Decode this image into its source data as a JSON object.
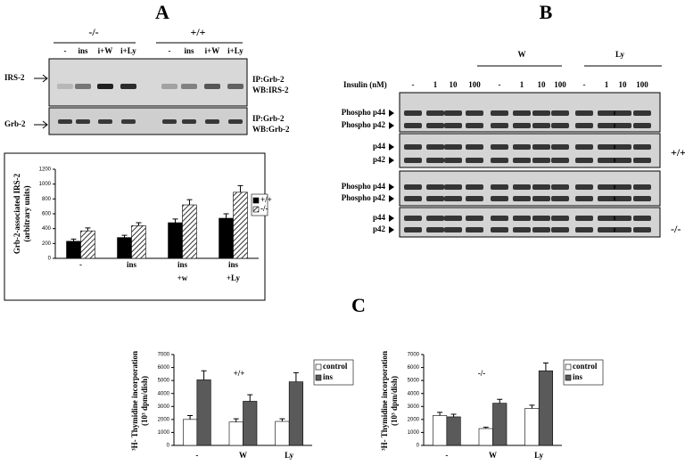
{
  "panel_a": {
    "label": "A",
    "groups": [
      "-/-",
      "+/+"
    ],
    "lanes": [
      "-",
      "ins",
      "i+W",
      "i+Ly",
      "-",
      "ins",
      "i+W",
      "i+Ly"
    ],
    "blot_labels": [
      "IRS-2",
      "Grb-2"
    ],
    "blot_notes": [
      [
        "IP:Grb-2",
        "WB:IRS-2"
      ],
      [
        "IP:Grb-2",
        "WB:Grb-2"
      ]
    ]
  },
  "panel_b": {
    "label": "B",
    "groups": [
      "W",
      "Ly"
    ],
    "dose_label": "Insulin (nM)",
    "lanes": [
      "-",
      "1",
      "10",
      "100",
      "-",
      "1",
      "10",
      "100",
      "-",
      "1",
      "10",
      "100"
    ],
    "rows": [
      "Phospho p44",
      "Phospho p42",
      "p44",
      "p42"
    ],
    "genotypes": [
      "+/+",
      "-/-"
    ]
  },
  "panel_c": {
    "label": "C"
  },
  "chart_data": [
    {
      "type": "bar",
      "y_label": [
        "Grb-2-associated IRS-2",
        "(arbitrary units)"
      ],
      "categories": [
        "-",
        "ins",
        "ins\n+w",
        "ins\n+Ly"
      ],
      "series": [
        {
          "name": "+/+",
          "color": "#000000",
          "values": [
            230,
            280,
            480,
            540
          ],
          "errors": [
            30,
            30,
            50,
            60
          ]
        },
        {
          "name": "-/-",
          "color": "#555555",
          "hatch": true,
          "values": [
            370,
            440,
            720,
            890
          ],
          "errors": [
            40,
            40,
            70,
            90
          ]
        }
      ],
      "ylim": [
        0,
        1200
      ],
      "yticks": [
        0,
        200,
        400,
        600,
        800,
        1000,
        1200
      ],
      "grid": false
    },
    {
      "type": "bar",
      "y_label": [
        "³H- Thymidine incorporation",
        "(10³ dpm/dish)"
      ],
      "annotation": "+/+",
      "categories": [
        "-",
        "W",
        "Ly"
      ],
      "series": [
        {
          "name": "control",
          "color": "#ffffff",
          "values": [
            2000,
            1800,
            1850
          ],
          "errors": [
            300,
            250,
            200
          ]
        },
        {
          "name": "ins",
          "color": "#5a5a5a",
          "values": [
            5050,
            3400,
            4900
          ],
          "errors": [
            700,
            500,
            700
          ]
        }
      ],
      "ylim": [
        0,
        7000
      ],
      "yticks": [
        0,
        1000,
        2000,
        3000,
        4000,
        5000,
        6000,
        7000
      ],
      "grid": false
    },
    {
      "type": "bar",
      "y_label": [
        "³H- Thymidine incorporation",
        "(10³ dpm/dish)"
      ],
      "annotation": "-/-",
      "categories": [
        "-",
        "W",
        "Ly"
      ],
      "series": [
        {
          "name": "control",
          "color": "#ffffff",
          "values": [
            2300,
            1300,
            2850
          ],
          "errors": [
            250,
            100,
            250
          ]
        },
        {
          "name": "ins",
          "color": "#5a5a5a",
          "values": [
            2200,
            3250,
            5750
          ],
          "errors": [
            200,
            300,
            600
          ]
        }
      ],
      "ylim": [
        0,
        7000
      ],
      "yticks": [
        0,
        1000,
        2000,
        3000,
        4000,
        5000,
        6000,
        7000
      ],
      "grid": false
    }
  ]
}
